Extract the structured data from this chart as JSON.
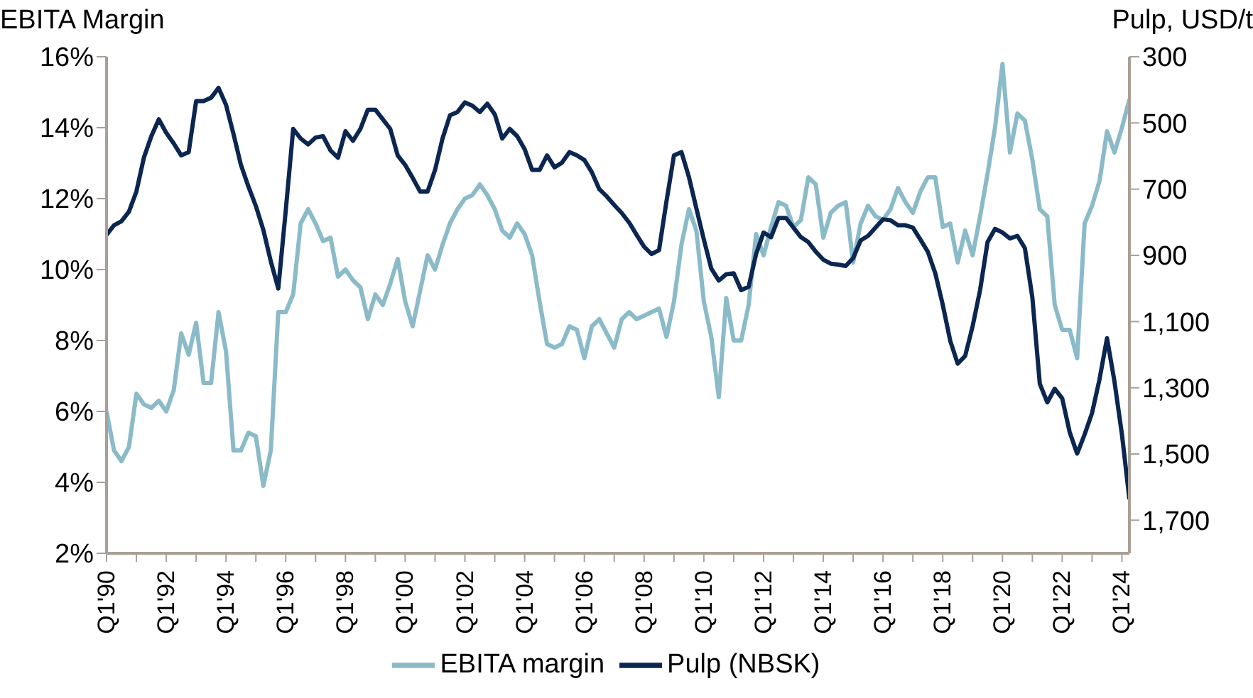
{
  "chart_data": {
    "type": "line",
    "ylabel": "EBITA Margin",
    "y2label": "Pulp, USD/t",
    "categories": [
      "Q1'90",
      null,
      null,
      null,
      null,
      null,
      null,
      null,
      "Q1'92",
      null,
      null,
      null,
      null,
      null,
      null,
      null,
      "Q1'94",
      null,
      null,
      null,
      null,
      null,
      null,
      null,
      "Q1'96",
      null,
      null,
      null,
      null,
      null,
      null,
      null,
      "Q1'98",
      null,
      null,
      null,
      null,
      null,
      null,
      null,
      "Q1'00",
      null,
      null,
      null,
      null,
      null,
      null,
      null,
      "Q1'02",
      null,
      null,
      null,
      null,
      null,
      null,
      null,
      "Q1'04",
      null,
      null,
      null,
      null,
      null,
      null,
      null,
      "Q1'06",
      null,
      null,
      null,
      null,
      null,
      null,
      null,
      "Q1'08",
      null,
      null,
      null,
      null,
      null,
      null,
      null,
      "Q1'10",
      null,
      null,
      null,
      null,
      null,
      null,
      null,
      "Q1'12",
      null,
      null,
      null,
      null,
      null,
      null,
      null,
      "Q1'14",
      null,
      null,
      null,
      null,
      null,
      null,
      null,
      "Q1'16",
      null,
      null,
      null,
      null,
      null,
      null,
      null,
      "Q1'18",
      null,
      null,
      null,
      null,
      null,
      null,
      null,
      "Q1'20",
      null,
      null,
      null,
      null,
      null,
      null,
      null,
      "Q1'22",
      null,
      null,
      null,
      null,
      null,
      null,
      null,
      "Q1'24",
      null
    ],
    "series": [
      {
        "name": "EBITA margin",
        "color": "#8bbac9",
        "values": [
          6.0,
          4.9,
          4.6,
          5.0,
          6.5,
          6.2,
          6.1,
          6.3,
          6.0,
          6.6,
          8.2,
          7.6,
          8.5,
          6.8,
          6.8,
          8.8,
          7.7,
          4.9,
          4.9,
          5.4,
          5.3,
          3.9,
          4.9,
          8.8,
          8.8,
          9.3,
          11.3,
          11.7,
          11.3,
          10.8,
          10.9,
          9.8,
          10.0,
          9.7,
          9.5,
          8.6,
          9.3,
          9.0,
          9.6,
          10.3,
          9.1,
          8.4,
          9.4,
          10.4,
          10.0,
          10.7,
          11.3,
          11.7,
          12.0,
          12.1,
          12.4,
          12.1,
          11.7,
          11.1,
          10.9,
          11.3,
          11.0,
          10.4,
          9.1,
          7.9,
          7.8,
          7.9,
          8.4,
          8.3,
          7.5,
          8.4,
          8.6,
          8.2,
          7.8,
          8.6,
          8.8,
          8.6,
          8.7,
          8.8,
          8.9,
          8.1,
          9.1,
          10.7,
          11.7,
          11.1,
          9.1,
          8.1,
          6.4,
          9.2,
          8.0,
          8.0,
          9.0,
          11.0,
          10.4,
          11.2,
          11.9,
          11.8,
          11.2,
          11.4,
          12.6,
          12.4,
          10.9,
          11.6,
          11.8,
          11.9,
          10.2,
          11.3,
          11.8,
          11.5,
          11.4,
          11.7,
          12.3,
          11.9,
          11.6,
          12.2,
          12.6,
          12.6,
          11.2,
          11.3,
          10.2,
          11.1,
          10.4,
          11.5,
          12.7,
          14.0,
          15.8,
          13.3,
          14.4,
          14.2,
          13.1,
          11.7,
          11.5,
          9.0,
          8.3,
          8.3,
          7.5,
          11.3,
          11.8,
          12.5,
          13.9,
          13.3,
          14.0,
          14.8
        ]
      },
      {
        "name": "Pulp (NBSK)",
        "color": "#0b2650",
        "axis": "y2",
        "values": [
          838,
          809,
          797,
          768,
          707,
          605,
          540,
          489,
          530,
          562,
          598,
          588,
          434,
          434,
          424,
          394,
          445,
          533,
          627,
          692,
          751,
          823,
          918,
          1000,
          765,
          518,
          547,
          565,
          544,
          540,
          583,
          605,
          525,
          554,
          518,
          460,
          460,
          489,
          518,
          598,
          627,
          666,
          707,
          707,
          642,
          547,
          477,
          467,
          438,
          448,
          467,
          442,
          474,
          547,
          518,
          540,
          579,
          642,
          642,
          598,
          634,
          620,
          588,
          598,
          612,
          649,
          700,
          722,
          748,
          772,
          801,
          838,
          874,
          896,
          884,
          736,
          598,
          588,
          663,
          758,
          852,
          940,
          976,
          957,
          954,
          1005,
          995,
          896,
          831,
          845,
          787,
          787,
          816,
          845,
          860,
          889,
          913,
          925,
          928,
          932,
          908,
          855,
          841,
          816,
          791,
          794,
          809,
          809,
          816,
          852,
          889,
          954,
          1049,
          1158,
          1227,
          1204,
          1114,
          1005,
          860,
          820,
          831,
          849,
          841,
          878,
          1027,
          1288,
          1344,
          1303,
          1332,
          1434,
          1499,
          1441,
          1376,
          1274,
          1150,
          1281,
          1441,
          1637
        ]
      }
    ],
    "ylim": [
      2,
      16
    ],
    "yticks": [
      {
        "value": 2,
        "label": "2%"
      },
      {
        "value": 4,
        "label": "4%"
      },
      {
        "value": 6,
        "label": "6%"
      },
      {
        "value": 8,
        "label": "8%"
      },
      {
        "value": 10,
        "label": "10%"
      },
      {
        "value": 12,
        "label": "12%"
      },
      {
        "value": 14,
        "label": "14%"
      },
      {
        "value": 16,
        "label": "16%"
      }
    ],
    "y2lim": [
      1800,
      300
    ],
    "y2ticks": [
      300,
      500,
      700,
      900,
      {
        "value": 1100,
        "label": "1,100"
      },
      {
        "value": 1300,
        "label": "1,300"
      },
      {
        "value": 1500,
        "label": "1,500"
      },
      {
        "value": 1700,
        "label": "1,700"
      }
    ],
    "grid": false,
    "legend": "bottom",
    "marker": "none",
    "line_style": "solid"
  }
}
